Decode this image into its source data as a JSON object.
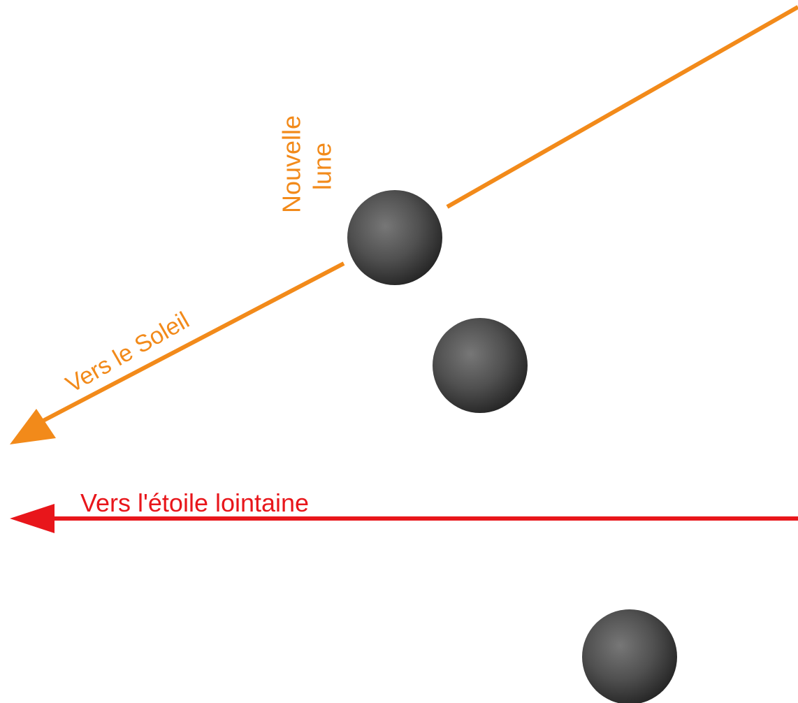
{
  "labels": {
    "new_moon": [
      "Nouvelle",
      "lune"
    ],
    "to_sun": "Vers le Soleil",
    "to_star": "Vers l'étoile lointaine"
  }
}
